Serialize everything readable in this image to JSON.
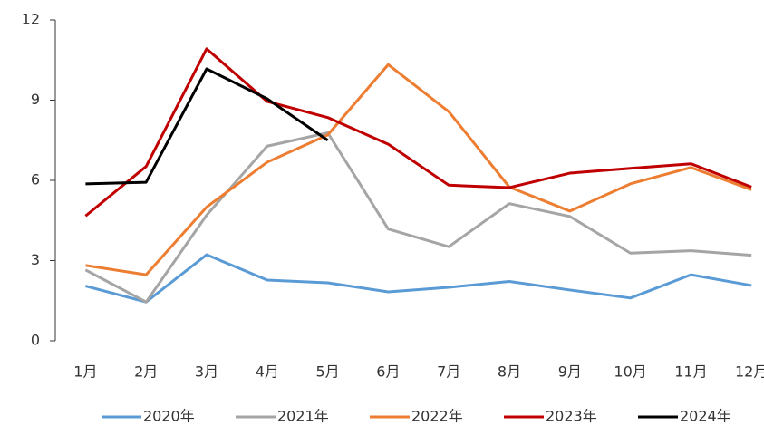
{
  "chart_data": {
    "type": "line",
    "categories": [
      "1月",
      "2月",
      "3月",
      "4月",
      "5月",
      "6月",
      "7月",
      "8月",
      "9月",
      "10月",
      "11月",
      "12月"
    ],
    "series": [
      {
        "name": "2020年",
        "color": "#5b9bd5",
        "values": [
          2.05,
          1.45,
          3.22,
          2.27,
          2.17,
          1.83,
          2.0,
          2.22,
          1.9,
          1.6,
          2.47,
          2.07
        ]
      },
      {
        "name": "2021年",
        "color": "#a5a5a5",
        "values": [
          2.65,
          1.45,
          4.7,
          7.28,
          7.78,
          4.18,
          3.52,
          5.13,
          4.65,
          3.28,
          3.37,
          3.2
        ]
      },
      {
        "name": "2022年",
        "color": "#ed7d31",
        "values": [
          2.82,
          2.47,
          5.0,
          6.68,
          7.7,
          10.33,
          8.57,
          5.75,
          4.85,
          5.87,
          6.48,
          5.65
        ]
      },
      {
        "name": "2023年",
        "color": "#c00000",
        "values": [
          4.67,
          6.52,
          10.92,
          8.95,
          8.35,
          7.35,
          5.82,
          5.73,
          6.27,
          6.45,
          6.62,
          5.75
        ]
      },
      {
        "name": "2024年",
        "color": "#000000",
        "values": [
          5.87,
          5.93,
          10.17,
          9.05,
          7.5,
          null,
          null,
          null,
          null,
          null,
          null,
          null
        ]
      }
    ],
    "ylim": [
      0,
      12
    ],
    "yticks": [
      0,
      3,
      6,
      9,
      12
    ],
    "legend": "bottom"
  }
}
